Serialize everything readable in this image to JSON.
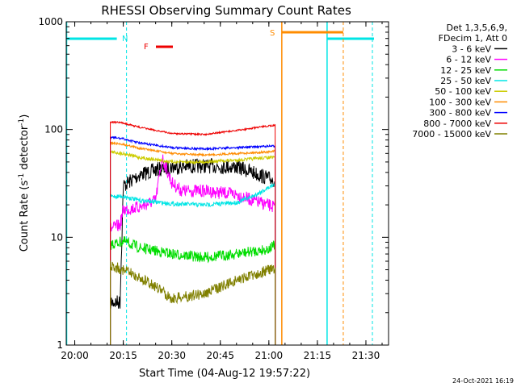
{
  "chart_data": {
    "type": "line",
    "title": "RHESSI Observing Summary Count Rates",
    "xlabel": "Start Time (04-Aug-12 19:57:22)",
    "ylabel_main": "Count Rate (s",
    "ylabel_sup1": "-1",
    "ylabel_mid": " detector",
    "ylabel_sup2": "-1",
    "ylabel_end": ")",
    "y_scale": "log",
    "ylim": [
      1,
      1000
    ],
    "xlim": [
      "19:57:22",
      "21:37:00"
    ],
    "x_ticks": [
      "20:00",
      "20:15",
      "20:30",
      "20:45",
      "21:00",
      "21:15",
      "21:30"
    ],
    "y_ticks": [
      "1",
      "10",
      "100",
      "1000"
    ],
    "legend_header": [
      "Det 1,3,5,6,9,",
      "FDecim 1, Att 0"
    ],
    "legend_position": "top-right",
    "timestamp": "24-Oct-2021 16:19",
    "annotations": [
      {
        "label": "N",
        "color": "#00e5e5"
      },
      {
        "label": "F",
        "color": "#ee0000"
      },
      {
        "label": "S",
        "color": "#ff8c00"
      }
    ],
    "series": [
      {
        "name": "3 - 6 keV",
        "color": "#000000",
        "points": [
          [
            "20:11",
            2.5
          ],
          [
            "20:14",
            2.5
          ],
          [
            "20:15",
            30
          ],
          [
            "20:20",
            38
          ],
          [
            "20:25",
            42
          ],
          [
            "20:30",
            45
          ],
          [
            "20:40",
            46
          ],
          [
            "20:50",
            45
          ],
          [
            "20:55",
            40
          ],
          [
            "21:00",
            35
          ],
          [
            "21:02",
            34
          ]
        ]
      },
      {
        "name": "6 - 12 keV",
        "color": "#ff00ff",
        "points": [
          [
            "20:11",
            12
          ],
          [
            "20:14",
            13
          ],
          [
            "20:15",
            18
          ],
          [
            "20:20",
            19
          ],
          [
            "20:25",
            22
          ],
          [
            "20:27",
            55
          ],
          [
            "20:30",
            32
          ],
          [
            "20:33",
            27
          ],
          [
            "20:40",
            27
          ],
          [
            "20:50",
            25
          ],
          [
            "20:55",
            22
          ],
          [
            "21:02",
            19
          ]
        ]
      },
      {
        "name": "12 - 25 keV",
        "color": "#00dd00",
        "points": [
          [
            "20:11",
            8.5
          ],
          [
            "20:15",
            9.2
          ],
          [
            "20:20",
            8
          ],
          [
            "20:30",
            7
          ],
          [
            "20:40",
            6.5
          ],
          [
            "20:50",
            7
          ],
          [
            "21:00",
            7.8
          ],
          [
            "21:02",
            8.5
          ]
        ]
      },
      {
        "name": "25 - 50 keV",
        "color": "#00e5e5",
        "points": [
          [
            "20:11",
            24
          ],
          [
            "20:15",
            24
          ],
          [
            "20:20",
            22
          ],
          [
            "20:30",
            20.5
          ],
          [
            "20:40",
            20
          ],
          [
            "20:50",
            21
          ],
          [
            "20:55",
            24
          ],
          [
            "21:00",
            29
          ],
          [
            "21:02",
            32
          ]
        ]
      },
      {
        "name": "50 - 100 keV",
        "color": "#cccc00",
        "points": [
          [
            "20:11",
            62
          ],
          [
            "20:15",
            60
          ],
          [
            "20:20",
            55
          ],
          [
            "20:30",
            50
          ],
          [
            "20:40",
            50
          ],
          [
            "20:50",
            52
          ],
          [
            "21:00",
            55
          ],
          [
            "21:02",
            55
          ]
        ]
      },
      {
        "name": "100 - 300 keV",
        "color": "#ff8c00",
        "points": [
          [
            "20:11",
            75
          ],
          [
            "20:15",
            73
          ],
          [
            "20:20",
            67
          ],
          [
            "20:30",
            60
          ],
          [
            "20:40",
            58
          ],
          [
            "20:50",
            60
          ],
          [
            "21:00",
            62
          ],
          [
            "21:02",
            63
          ]
        ]
      },
      {
        "name": "300 - 800 keV",
        "color": "#0000ff",
        "points": [
          [
            "20:11",
            85
          ],
          [
            "20:15",
            82
          ],
          [
            "20:20",
            75
          ],
          [
            "20:30",
            68
          ],
          [
            "20:40",
            66
          ],
          [
            "20:50",
            68
          ],
          [
            "21:00",
            70
          ],
          [
            "21:02",
            70
          ]
        ]
      },
      {
        "name": "800 - 7000 keV",
        "color": "#ee0000",
        "points": [
          [
            "20:11",
            118
          ],
          [
            "20:15",
            115
          ],
          [
            "20:20",
            105
          ],
          [
            "20:30",
            92
          ],
          [
            "20:40",
            90
          ],
          [
            "20:50",
            98
          ],
          [
            "21:00",
            108
          ],
          [
            "21:02",
            110
          ]
        ]
      },
      {
        "name": "7000 - 15000 keV",
        "color": "#808000",
        "points": [
          [
            "20:11",
            5.5
          ],
          [
            "20:15",
            5
          ],
          [
            "20:20",
            4.2
          ],
          [
            "20:25",
            3.5
          ],
          [
            "20:30",
            2.7
          ],
          [
            "20:40",
            3
          ],
          [
            "20:50",
            4
          ],
          [
            "21:00",
            5
          ],
          [
            "21:02",
            5
          ]
        ]
      }
    ]
  }
}
